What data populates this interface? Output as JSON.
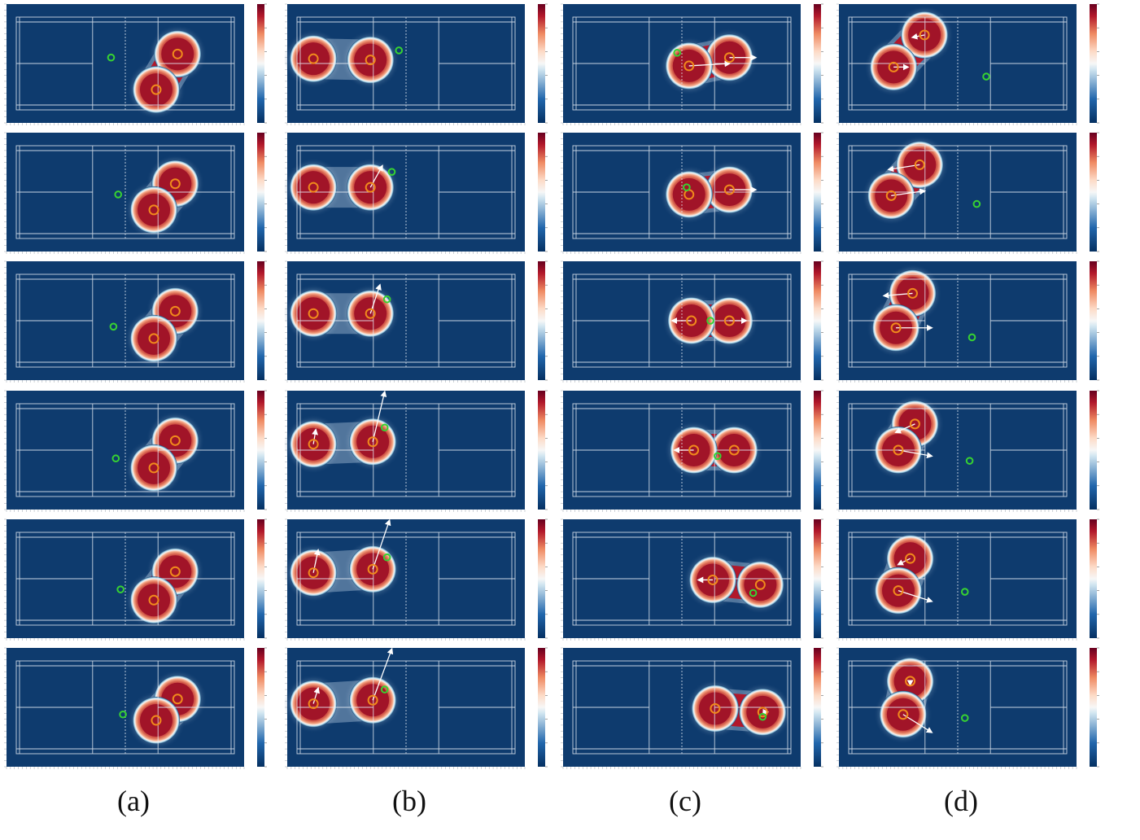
{
  "figure": {
    "column_labels": [
      "(a)",
      "(b)",
      "(c)",
      "(d)"
    ]
  },
  "colors": {
    "background": "#0e3b6e",
    "court_line": "#e8eef6",
    "player": "#f08a1c",
    "shuttle": "#37d232",
    "arrow": "#ffffff",
    "heat": [
      "#053061",
      "#2166ac",
      "#f7f7f7",
      "#ef8a62",
      "#b2182b",
      "#67001f"
    ]
  },
  "panels": [
    {
      "row": 0,
      "col": 0,
      "players": [
        [
          0.72,
          0.42
        ],
        [
          0.63,
          0.72
        ]
      ],
      "shuttle": [
        0.44,
        0.45
      ],
      "arrows": []
    },
    {
      "row": 0,
      "col": 1,
      "players": [
        [
          0.11,
          0.46
        ],
        [
          0.35,
          0.47
        ]
      ],
      "shuttle": [
        0.47,
        0.39
      ],
      "arrows": []
    },
    {
      "row": 0,
      "col": 2,
      "players": [
        [
          0.7,
          0.45
        ],
        [
          0.53,
          0.52
        ]
      ],
      "shuttle": [
        0.48,
        0.41
      ],
      "arrows": [
        [
          0.7,
          0.45,
          0.81,
          0.45
        ],
        [
          0.53,
          0.52,
          0.7,
          0.5
        ]
      ]
    },
    {
      "row": 0,
      "col": 3,
      "players": [
        [
          0.36,
          0.26
        ],
        [
          0.23,
          0.53
        ]
      ],
      "shuttle": [
        0.62,
        0.61
      ],
      "arrows": [
        [
          0.36,
          0.26,
          0.31,
          0.28
        ],
        [
          0.23,
          0.53,
          0.29,
          0.53
        ]
      ]
    },
    {
      "row": 1,
      "col": 0,
      "players": [
        [
          0.71,
          0.43
        ],
        [
          0.62,
          0.65
        ]
      ],
      "shuttle": [
        0.47,
        0.52
      ],
      "arrows": []
    },
    {
      "row": 1,
      "col": 1,
      "players": [
        [
          0.11,
          0.46
        ],
        [
          0.35,
          0.46
        ]
      ],
      "shuttle": [
        0.44,
        0.33
      ],
      "arrows": [
        [
          0.35,
          0.46,
          0.4,
          0.28
        ]
      ]
    },
    {
      "row": 1,
      "col": 2,
      "players": [
        [
          0.7,
          0.48
        ],
        [
          0.53,
          0.52
        ]
      ],
      "shuttle": [
        0.52,
        0.46
      ],
      "arrows": [
        [
          0.7,
          0.48,
          0.81,
          0.48
        ]
      ]
    },
    {
      "row": 1,
      "col": 3,
      "players": [
        [
          0.34,
          0.27
        ],
        [
          0.22,
          0.53
        ]
      ],
      "shuttle": [
        0.58,
        0.6
      ],
      "arrows": [
        [
          0.34,
          0.27,
          0.21,
          0.31
        ],
        [
          0.22,
          0.53,
          0.36,
          0.49
        ]
      ]
    },
    {
      "row": 2,
      "col": 0,
      "players": [
        [
          0.71,
          0.42
        ],
        [
          0.62,
          0.65
        ]
      ],
      "shuttle": [
        0.45,
        0.55
      ],
      "arrows": []
    },
    {
      "row": 2,
      "col": 1,
      "players": [
        [
          0.11,
          0.44
        ],
        [
          0.35,
          0.44
        ]
      ],
      "shuttle": [
        0.42,
        0.32
      ],
      "arrows": [
        [
          0.35,
          0.44,
          0.39,
          0.2
        ]
      ]
    },
    {
      "row": 2,
      "col": 2,
      "players": [
        [
          0.7,
          0.5
        ],
        [
          0.54,
          0.5
        ]
      ],
      "shuttle": [
        0.62,
        0.5
      ],
      "arrows": [
        [
          0.7,
          0.5,
          0.77,
          0.5
        ],
        [
          0.54,
          0.5,
          0.46,
          0.5
        ]
      ]
    },
    {
      "row": 2,
      "col": 3,
      "players": [
        [
          0.31,
          0.27
        ],
        [
          0.24,
          0.56
        ]
      ],
      "shuttle": [
        0.56,
        0.64
      ],
      "arrows": [
        [
          0.31,
          0.27,
          0.19,
          0.29
        ],
        [
          0.24,
          0.56,
          0.39,
          0.56
        ]
      ]
    },
    {
      "row": 3,
      "col": 0,
      "players": [
        [
          0.71,
          0.42
        ],
        [
          0.62,
          0.65
        ]
      ],
      "shuttle": [
        0.46,
        0.57
      ],
      "arrows": []
    },
    {
      "row": 3,
      "col": 1,
      "players": [
        [
          0.11,
          0.45
        ],
        [
          0.36,
          0.43
        ]
      ],
      "shuttle": [
        0.41,
        0.31
      ],
      "arrows": [
        [
          0.11,
          0.45,
          0.12,
          0.33
        ],
        [
          0.36,
          0.43,
          0.41,
          0.01
        ]
      ]
    },
    {
      "row": 3,
      "col": 2,
      "players": [
        [
          0.72,
          0.5
        ],
        [
          0.55,
          0.5
        ]
      ],
      "shuttle": [
        0.65,
        0.55
      ],
      "arrows": [
        [
          0.55,
          0.5,
          0.47,
          0.5
        ]
      ]
    },
    {
      "row": 3,
      "col": 3,
      "players": [
        [
          0.32,
          0.28
        ],
        [
          0.25,
          0.5
        ]
      ],
      "shuttle": [
        0.55,
        0.59
      ],
      "arrows": [
        [
          0.32,
          0.28,
          0.24,
          0.35
        ],
        [
          0.25,
          0.5,
          0.39,
          0.55
        ]
      ]
    },
    {
      "row": 4,
      "col": 0,
      "players": [
        [
          0.71,
          0.44
        ],
        [
          0.62,
          0.68
        ]
      ],
      "shuttle": [
        0.48,
        0.59
      ],
      "arrows": []
    },
    {
      "row": 4,
      "col": 1,
      "players": [
        [
          0.11,
          0.45
        ],
        [
          0.36,
          0.42
        ]
      ],
      "shuttle": [
        0.42,
        0.32
      ],
      "arrows": [
        [
          0.11,
          0.45,
          0.13,
          0.26
        ],
        [
          0.36,
          0.42,
          0.43,
          0.01
        ]
      ]
    },
    {
      "row": 4,
      "col": 2,
      "players": [
        [
          0.83,
          0.55
        ],
        [
          0.63,
          0.51
        ]
      ],
      "shuttle": [
        0.8,
        0.62
      ],
      "arrows": [
        [
          0.63,
          0.51,
          0.57,
          0.51
        ]
      ]
    },
    {
      "row": 4,
      "col": 3,
      "players": [
        [
          0.3,
          0.33
        ],
        [
          0.25,
          0.6
        ]
      ],
      "shuttle": [
        0.53,
        0.61
      ],
      "arrows": [
        [
          0.3,
          0.33,
          0.25,
          0.38
        ],
        [
          0.25,
          0.6,
          0.39,
          0.69
        ]
      ]
    },
    {
      "row": 5,
      "col": 0,
      "players": [
        [
          0.72,
          0.43
        ],
        [
          0.63,
          0.61
        ]
      ],
      "shuttle": [
        0.49,
        0.56
      ],
      "arrows": []
    },
    {
      "row": 5,
      "col": 1,
      "players": [
        [
          0.11,
          0.47
        ],
        [
          0.36,
          0.44
        ]
      ],
      "shuttle": [
        0.41,
        0.35
      ],
      "arrows": [
        [
          0.11,
          0.47,
          0.13,
          0.34
        ],
        [
          0.36,
          0.44,
          0.44,
          0.01
        ]
      ]
    },
    {
      "row": 5,
      "col": 2,
      "players": [
        [
          0.84,
          0.54
        ],
        [
          0.64,
          0.51
        ]
      ],
      "shuttle": [
        0.84,
        0.58
      ],
      "arrows": [
        [
          0.84,
          0.54,
          0.86,
          0.54
        ]
      ]
    },
    {
      "row": 5,
      "col": 3,
      "players": [
        [
          0.3,
          0.28
        ],
        [
          0.27,
          0.56
        ]
      ],
      "shuttle": [
        0.53,
        0.59
      ],
      "arrows": [
        [
          0.3,
          0.28,
          0.3,
          0.31
        ],
        [
          0.27,
          0.56,
          0.39,
          0.71
        ]
      ]
    }
  ]
}
